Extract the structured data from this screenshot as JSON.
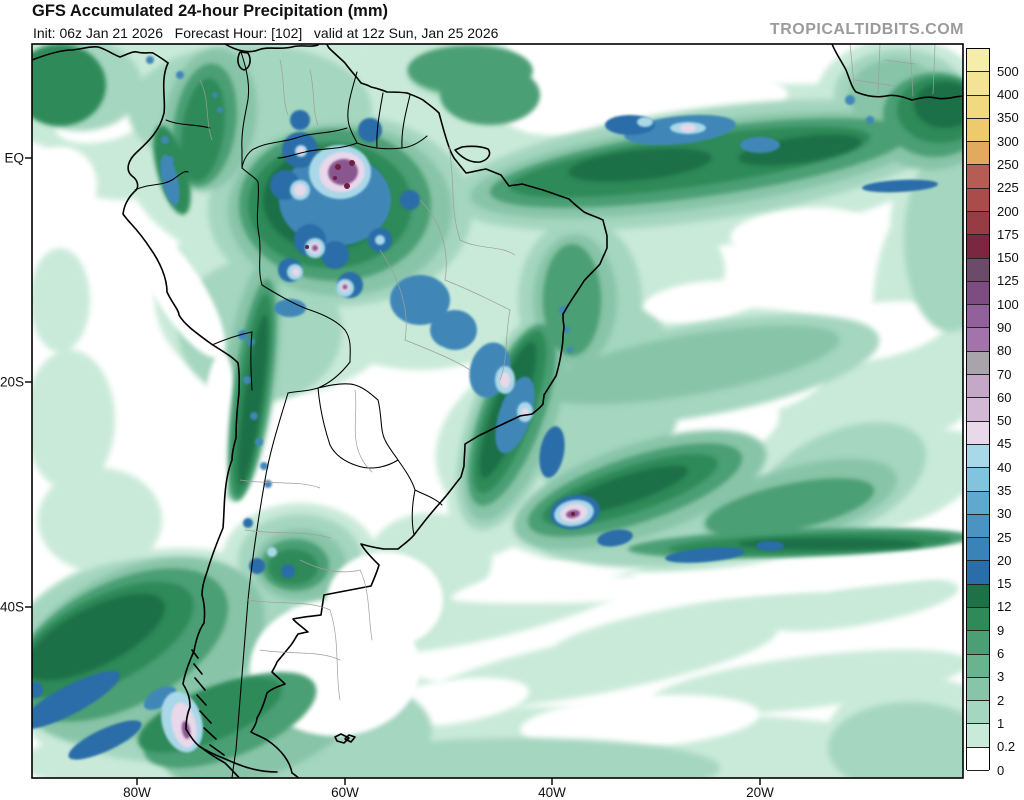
{
  "header": {
    "title": "GFS Accumulated 24-hour Precipitation (mm)",
    "subtitle": "Init: 06z Jan 21 2026   Forecast Hour: [102]   valid at 12z Sun, Jan 25 2026",
    "watermark": "TROPICALTIDBITS.COM"
  },
  "map": {
    "model": "GFS",
    "field": "Accumulated 24-hour Precipitation",
    "units": "mm",
    "init": "06z Jan 21 2026",
    "forecast_hour": "102",
    "valid": "12z Sun, Jan 25 2026",
    "lat_labels": [
      "EQ",
      "20S",
      "40S"
    ],
    "lon_labels": [
      "80W",
      "60W",
      "40W",
      "20W"
    ]
  },
  "colorbar": {
    "units": "mm",
    "segments": [
      {
        "color": "#f6edaa",
        "label": "500"
      },
      {
        "color": "#f2e494",
        "label": "400"
      },
      {
        "color": "#f0d97e",
        "label": "350"
      },
      {
        "color": "#eeca6c",
        "label": "300"
      },
      {
        "color": "#e2aa5f",
        "label": "250"
      },
      {
        "color": "#b55d52",
        "label": "225"
      },
      {
        "color": "#aa4d4a",
        "label": "200"
      },
      {
        "color": "#973c45",
        "label": "175"
      },
      {
        "color": "#7c2741",
        "label": "150"
      },
      {
        "color": "#6b4b69",
        "label": "125"
      },
      {
        "color": "#7d4c80",
        "label": "100"
      },
      {
        "color": "#92609a",
        "label": "90"
      },
      {
        "color": "#a274ab",
        "label": "80"
      },
      {
        "color": "#a9a3ab",
        "label": "70"
      },
      {
        "color": "#c5a7c7",
        "label": "60"
      },
      {
        "color": "#d4b9d6",
        "label": "50"
      },
      {
        "color": "#e9d7ea",
        "label": "45"
      },
      {
        "color": "#a9d8e9",
        "label": "40"
      },
      {
        "color": "#82c3de",
        "label": "35"
      },
      {
        "color": "#60a9ce",
        "label": "30"
      },
      {
        "color": "#4b94c2",
        "label": "25"
      },
      {
        "color": "#3a83b6",
        "label": "20"
      },
      {
        "color": "#2a6da8",
        "label": "15"
      },
      {
        "color": "#1e7046",
        "label": "12"
      },
      {
        "color": "#2f8a58",
        "label": "9"
      },
      {
        "color": "#4c9f74",
        "label": "6"
      },
      {
        "color": "#6bb28e",
        "label": "3"
      },
      {
        "color": "#88c4a7",
        "label": "2"
      },
      {
        "color": "#a5d6c0",
        "label": "1"
      },
      {
        "color": "#c9ead9",
        "label": "0.2"
      },
      {
        "color": "#ffffff",
        "label": "0"
      }
    ]
  }
}
